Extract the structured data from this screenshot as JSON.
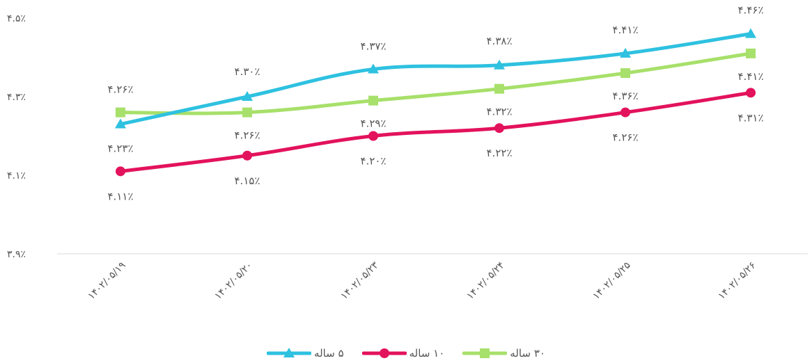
{
  "chart_data": {
    "type": "line",
    "categories": [
      "۱۴۰۲/۰۵/۱۹",
      "۱۴۰۲/۰۵/۲۰",
      "۱۴۰۲/۰۵/۲۳",
      "۱۴۰۲/۰۵/۲۴",
      "۱۴۰۲/۰۵/۲۵",
      "۱۴۰۲/۰۵/۲۶"
    ],
    "series": [
      {
        "name": "۵ ساله",
        "color": "#2EC1E0",
        "marker": "triangle",
        "values": [
          4.23,
          4.3,
          4.37,
          4.38,
          4.41,
          4.46
        ],
        "labels": [
          "۴.۲۳٪",
          "۴.۳۰٪",
          "۴.۳۷٪",
          "۴.۳۸٪",
          "۴.۴۱٪",
          "۴.۴۶٪"
        ]
      },
      {
        "name": "۱۰ ساله",
        "color": "#E3125C",
        "marker": "circle",
        "values": [
          4.11,
          4.15,
          4.2,
          4.22,
          4.26,
          4.31
        ],
        "labels": [
          "۴.۱۱٪",
          "۴.۱۵٪",
          "۴.۲۰٪",
          "۴.۲۲٪",
          "۴.۲۶٪",
          "۴.۳۱٪"
        ]
      },
      {
        "name": "۳۰ ساله",
        "color": "#A7E06A",
        "marker": "square",
        "values": [
          4.26,
          4.26,
          4.29,
          4.32,
          4.36,
          4.41
        ],
        "labels": [
          "۴.۲۶٪",
          "۴.۲۶٪",
          "۴.۲۹٪",
          "۴.۳۲٪",
          "۴.۳۶٪",
          "۴.۴۱٪"
        ]
      }
    ],
    "yticks": [
      3.9,
      4.1,
      4.3,
      4.5
    ],
    "ytick_labels": [
      "۳.۹٪",
      "۴.۱٪",
      "۴.۳٪",
      "۴.۵٪"
    ],
    "ylim": [
      3.9,
      4.5
    ],
    "grid": false,
    "legend": "bottom"
  }
}
